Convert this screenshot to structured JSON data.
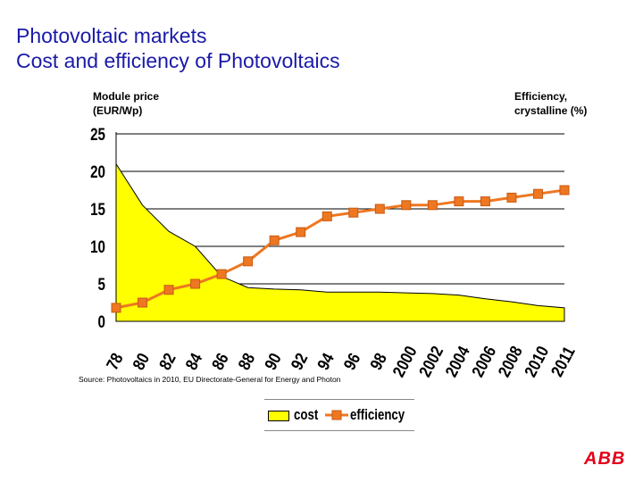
{
  "slide": {
    "title_line1": "Photovoltaic markets",
    "title_line2": "Cost and efficiency of Photovoltaics",
    "left_axis_caption_line1": "Module price",
    "left_axis_caption_line2": "(EUR/Wp)",
    "right_axis_caption_line1": "Efficiency,",
    "right_axis_caption_line2": "crystalline (%)",
    "source": "Source: Photovoltaics in 2010, EU Directorate-General for Energy and Photon",
    "logo_text": "ABB"
  },
  "chart_data": {
    "type": "area",
    "categories": [
      "78",
      "80",
      "82",
      "84",
      "86",
      "88",
      "90",
      "92",
      "94",
      "96",
      "98",
      "2000",
      "2002",
      "2004",
      "2006",
      "2008",
      "2010",
      "2011"
    ],
    "yticks": [
      "0",
      "5",
      "10",
      "15",
      "20",
      "25"
    ],
    "ylim": [
      0,
      25
    ],
    "title": "",
    "xlabel": "",
    "ylabel": "Module price (EUR/Wp)",
    "y2label": "Efficiency, crystalline (%)",
    "grid": true,
    "series": [
      {
        "name": "cost",
        "type": "area",
        "color": "#ffff00",
        "values": [
          21,
          15.5,
          12,
          10,
          6,
          4.5,
          4.3,
          4.2,
          3.9,
          3.9,
          3.9,
          3.8,
          3.7,
          3.5,
          3,
          2.6,
          2.1,
          1.8
        ]
      },
      {
        "name": "efficiency",
        "type": "line",
        "color": "#ee7722",
        "values": [
          1.8,
          2.5,
          4.2,
          5.0,
          6.3,
          8.0,
          10.8,
          11.9,
          14.0,
          14.5,
          15.0,
          15.5,
          15.5,
          16.0,
          16.0,
          16.5,
          17.0,
          17.5
        ]
      }
    ],
    "legend": [
      "cost",
      "efficiency"
    ],
    "legend_position": "bottom"
  }
}
